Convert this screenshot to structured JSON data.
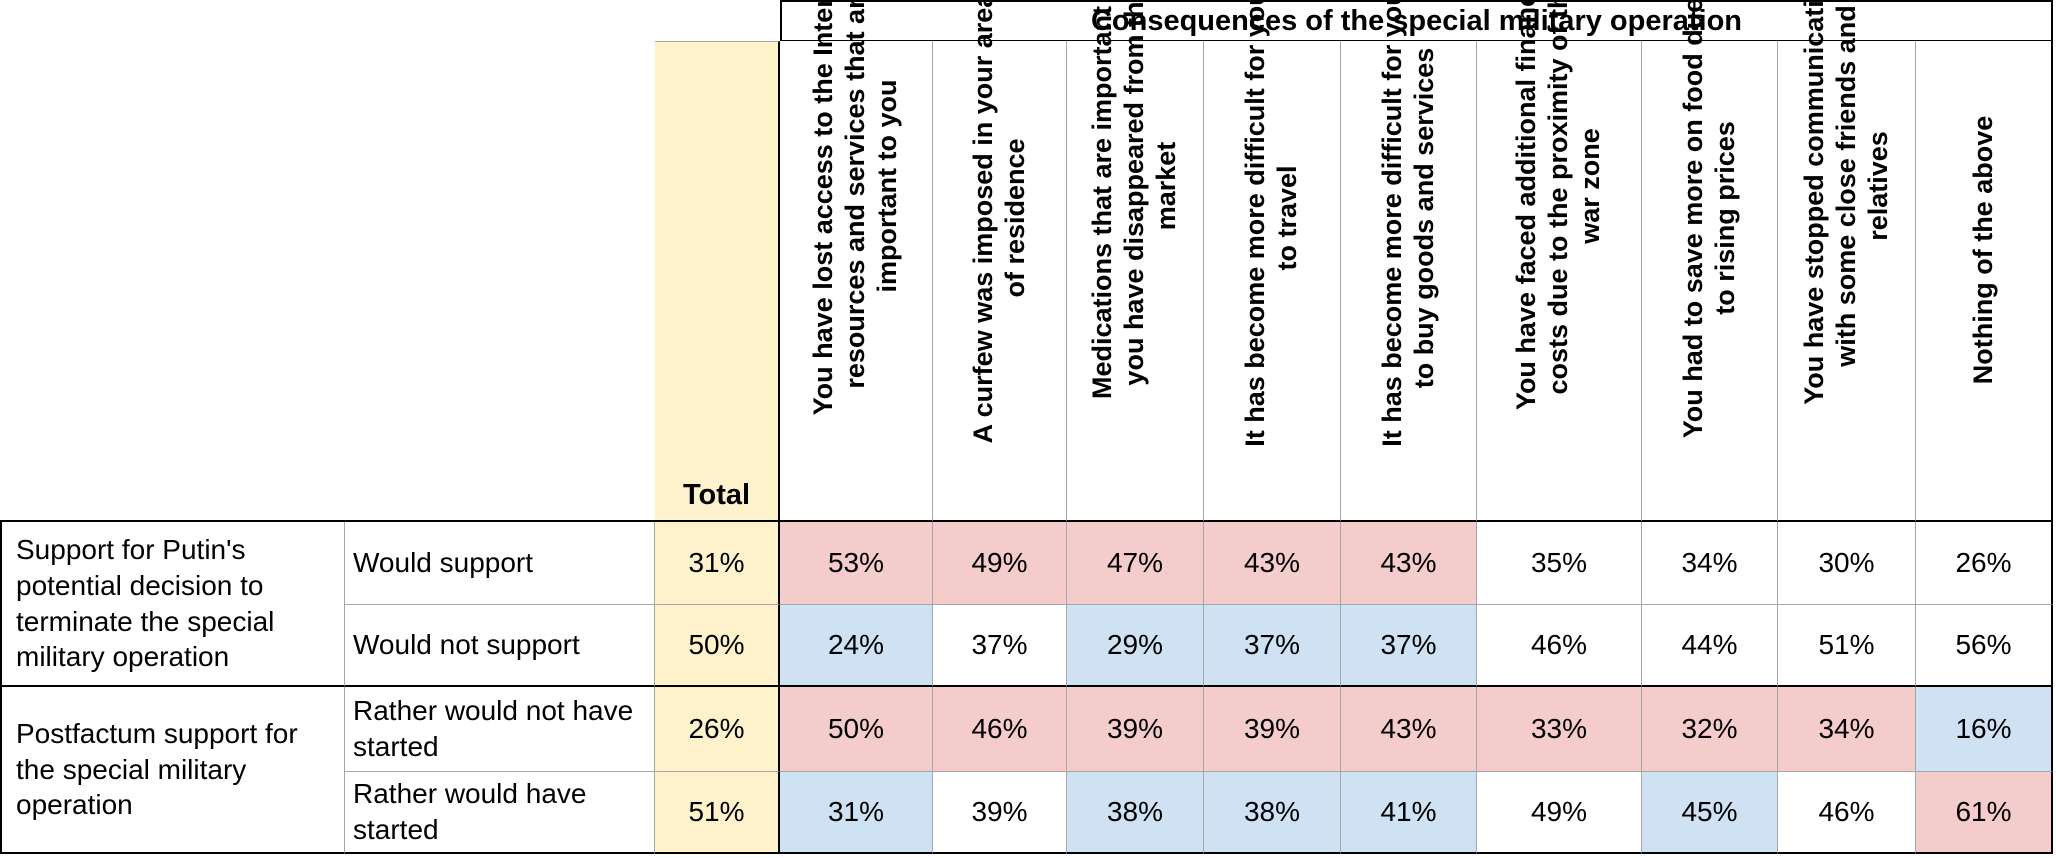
{
  "table": {
    "super_header": "Consequences of the special military operation",
    "total_header": "Total",
    "columns": [
      "You have lost access to the Internet resources and services that are important to you",
      "A curfew was imposed in your area of residence",
      "Medications that are important to you have disappeared from the market",
      "It has become more difficult for you to travel",
      "It has become more difficult for you to buy goods and services",
      "You have faced additional financial costs due to the proximity of the war zone",
      "You had to save more on food due to rising prices",
      "You have stopped communicating with some close friends and relatives",
      "Nothing of the above"
    ],
    "groups": [
      {
        "label": "Support for Putin's potential decision to terminate the special military operation",
        "rows": [
          {
            "label": "Would support",
            "total": "31%",
            "values": [
              "53%",
              "49%",
              "47%",
              "43%",
              "43%",
              "35%",
              "34%",
              "30%",
              "26%"
            ],
            "highlights": [
              "red",
              "red",
              "red",
              "red",
              "red",
              "",
              "",
              "",
              ""
            ]
          },
          {
            "label": "Would not support",
            "total": "50%",
            "values": [
              "24%",
              "37%",
              "29%",
              "37%",
              "37%",
              "46%",
              "44%",
              "51%",
              "56%"
            ],
            "highlights": [
              "blue",
              "",
              "blue",
              "blue",
              "blue",
              "",
              "",
              "",
              ""
            ]
          }
        ]
      },
      {
        "label": "Postfactum support for the special military operation",
        "rows": [
          {
            "label": "Rather would not have started",
            "total": "26%",
            "values": [
              "50%",
              "46%",
              "39%",
              "39%",
              "43%",
              "33%",
              "32%",
              "34%",
              "16%"
            ],
            "highlights": [
              "red",
              "red",
              "red",
              "red",
              "red",
              "red",
              "red",
              "red",
              "blue"
            ]
          },
          {
            "label": "Rather would have started",
            "total": "51%",
            "values": [
              "31%",
              "39%",
              "38%",
              "38%",
              "41%",
              "49%",
              "45%",
              "46%",
              "61%"
            ],
            "highlights": [
              "blue",
              "",
              "blue",
              "blue",
              "blue",
              "",
              "blue",
              "",
              "red"
            ]
          }
        ]
      }
    ],
    "colors": {
      "total_background": "#fef2cc",
      "higher_highlight": "#f4cccc",
      "lower_highlight": "#cfe2f3"
    }
  }
}
